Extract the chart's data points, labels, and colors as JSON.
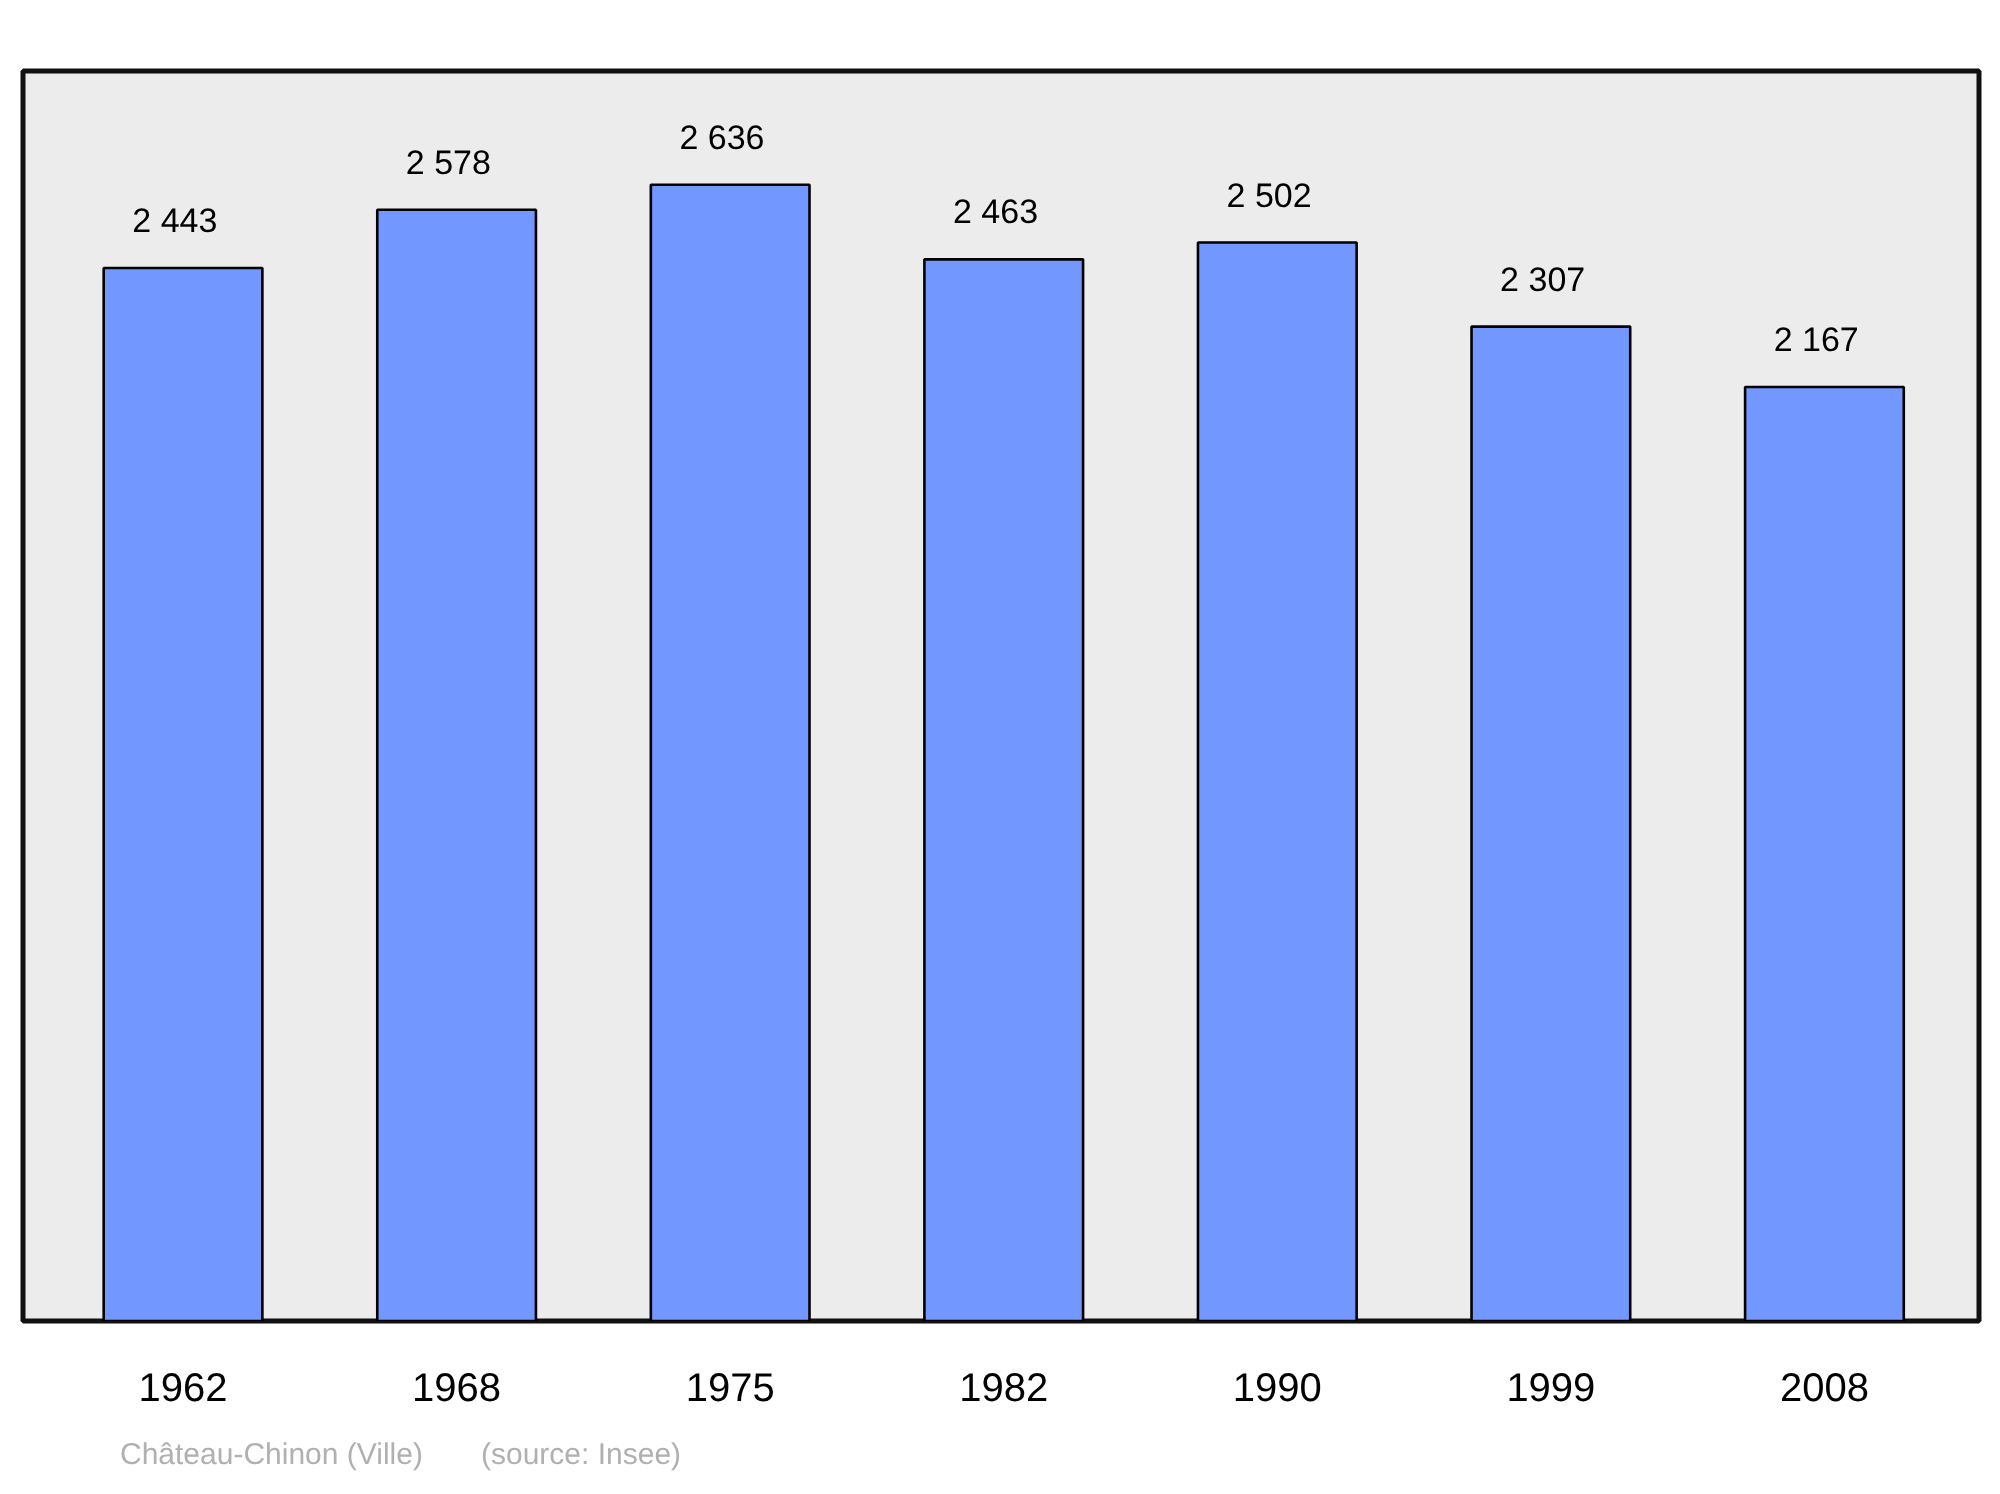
{
  "chart_data": {
    "type": "bar",
    "categories": [
      "1962",
      "1968",
      "1975",
      "1982",
      "1990",
      "1999",
      "2008"
    ],
    "values": [
      2443,
      2578,
      2636,
      2463,
      2502,
      2307,
      2167
    ],
    "color": "#7298ff",
    "data_labels": true,
    "value_labels": [
      "2 443",
      "2 578",
      "2 636",
      "2 463",
      "2 502",
      "2 307",
      "2 167"
    ],
    "ylim": [
      0,
      2900
    ],
    "tick_labels": "x",
    "grid": false,
    "annotations": [
      "Château-Chinon (Ville)",
      "(source: Insee)"
    ]
  }
}
